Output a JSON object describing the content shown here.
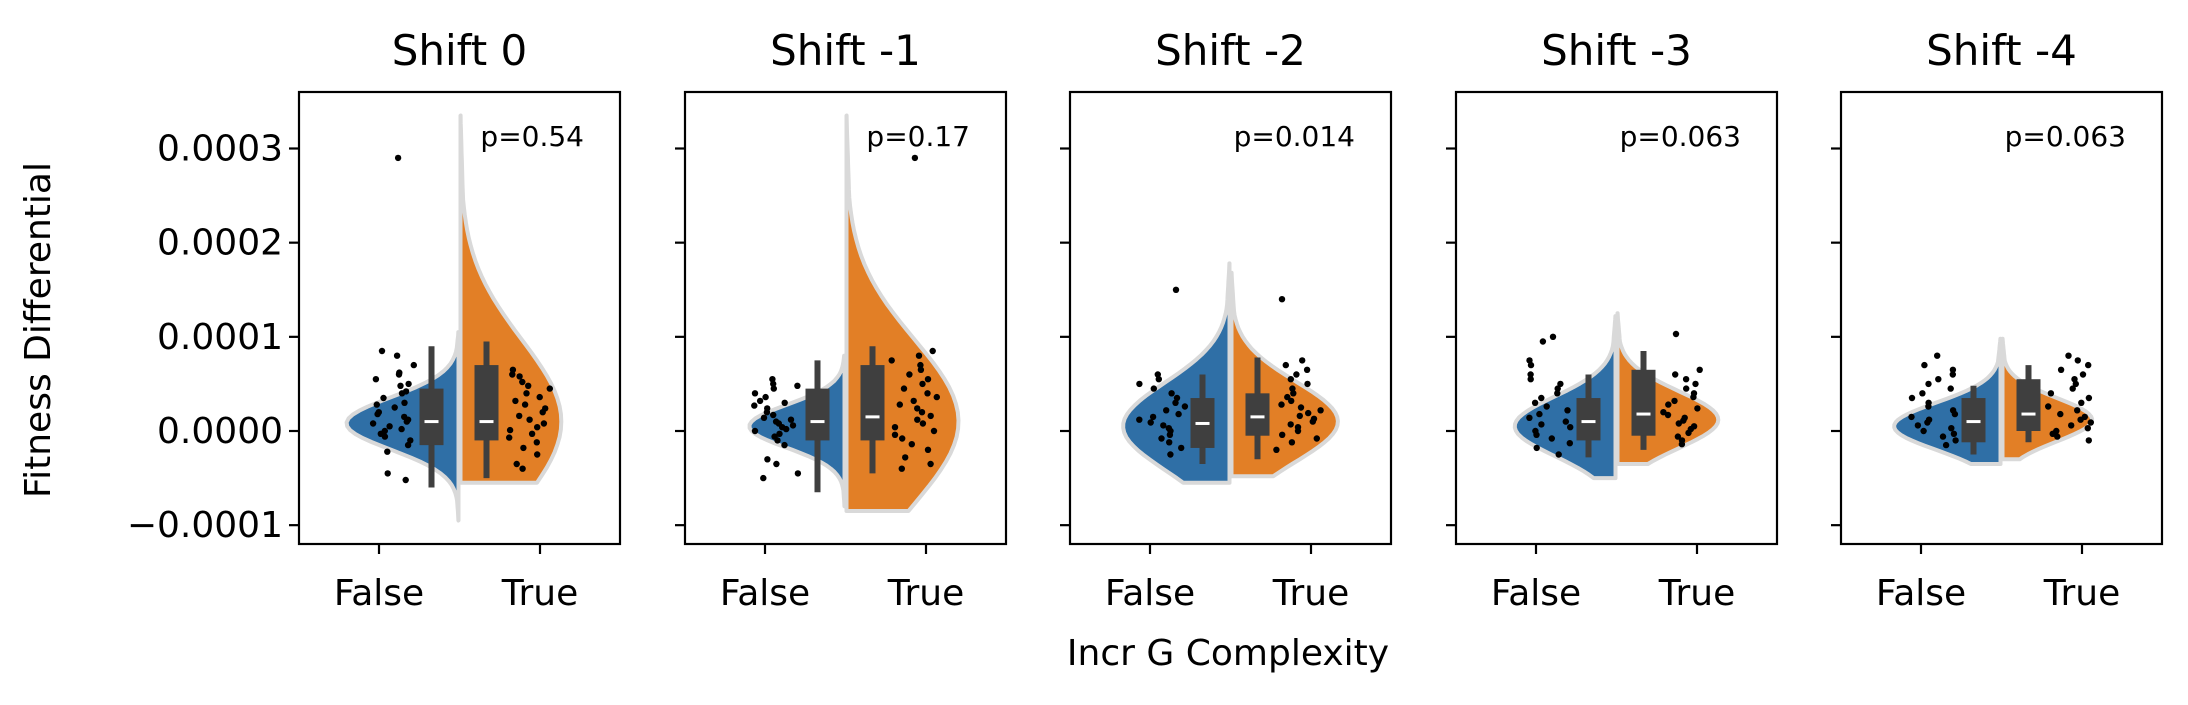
{
  "chart_data": {
    "type": "violin",
    "xlabel": "Incr G Complexity",
    "ylabel": "Fitness Differential",
    "ylim": [
      -0.00012,
      0.00036
    ],
    "yticks": [
      {
        "value": 0.0003,
        "label": "0.0003"
      },
      {
        "value": 0.0002,
        "label": "0.0002"
      },
      {
        "value": 0.0001,
        "label": "0.0001"
      },
      {
        "value": 0.0,
        "label": "0.0000"
      },
      {
        "value": -0.0001,
        "label": "−0.0001"
      }
    ],
    "categories": [
      "False",
      "True"
    ],
    "colors": {
      "False": "#2f6fa6",
      "True": "#e27f26",
      "outline": "#d9d9d9",
      "box": "#3f3f3f",
      "median": "#ffffff"
    },
    "panels": [
      {
        "title": "Shift 0",
        "p_label": "p=0.54",
        "groups": [
          {
            "category": "False",
            "min": -9.5e-05,
            "max": 0.000105,
            "q1": -1.5e-05,
            "median": 1e-05,
            "q3": 4.5e-05,
            "wlo": -6e-05,
            "whi": 9e-05,
            "peak": 8e-06,
            "width": 1.0,
            "tail": 0.0
          },
          {
            "category": "True",
            "min": -5.5e-05,
            "max": 0.000335,
            "q1": -1e-05,
            "median": 1e-05,
            "q3": 7e-05,
            "wlo": -5e-05,
            "whi": 9.5e-05,
            "peak": 1e-05,
            "width": 0.9,
            "tail": 0.0
          }
        ],
        "points": {
          "False": [
            0.00029,
            8.5e-05,
            8e-05,
            7e-05,
            6.2e-05,
            6e-05,
            5.5e-05,
            5e-05,
            4.8e-05,
            4.2e-05,
            4e-05,
            3.5e-05,
            3e-05,
            2.8e-05,
            2.5e-05,
            2e-05,
            1.8e-05,
            1.5e-05,
            1.2e-05,
            1e-05,
            8e-06,
            5e-06,
            2e-06,
            0.0,
            -3e-06,
            -6e-06,
            -1e-05,
            -1.5e-05,
            -2.2e-05,
            -4.5e-05,
            -5.2e-05
          ],
          "True": [
            6.5e-05,
            6e-05,
            5.8e-05,
            5.2e-05,
            4.8e-05,
            4.5e-05,
            4e-05,
            3.6e-05,
            3.2e-05,
            2.8e-05,
            2.4e-05,
            2e-05,
            1.6e-05,
            1.2e-05,
            8e-06,
            4e-06,
            1e-06,
            -3e-06,
            -7e-06,
            -1.2e-05,
            -1.8e-05,
            -2.5e-05,
            -3.5e-05,
            -4e-05
          ]
        }
      },
      {
        "title": "Shift -1",
        "p_label": "p=0.17",
        "groups": [
          {
            "category": "False",
            "min": -8e-05,
            "max": 8e-05,
            "q1": -1e-05,
            "median": 1e-05,
            "q3": 4.5e-05,
            "wlo": -6.5e-05,
            "whi": 7.5e-05,
            "peak": 5e-06,
            "width": 0.85,
            "tail": 0.0
          },
          {
            "category": "True",
            "min": -8.5e-05,
            "max": 0.000335,
            "q1": -1e-05,
            "median": 1.5e-05,
            "q3": 7e-05,
            "wlo": -4.5e-05,
            "whi": 9e-05,
            "peak": 1e-05,
            "width": 1.0,
            "tail": 0.0
          }
        ],
        "points": {
          "False": [
            5.5e-05,
            5e-05,
            4.8e-05,
            4.5e-05,
            4e-05,
            3.6e-05,
            3.2e-05,
            3e-05,
            2.7e-05,
            2.4e-05,
            2e-05,
            1.7e-05,
            1.4e-05,
            1.2e-05,
            1e-05,
            8e-06,
            6e-06,
            4e-06,
            2e-06,
            0.0,
            -3e-06,
            -6e-06,
            -1e-05,
            -1.5e-05,
            -3e-05,
            -3.5e-05,
            -4.5e-05,
            -5e-05
          ],
          "True": [
            0.00029,
            8.5e-05,
            8e-05,
            7.5e-05,
            7e-05,
            6.5e-05,
            6e-05,
            5.5e-05,
            5e-05,
            4.5e-05,
            4e-05,
            3.6e-05,
            3.2e-05,
            2.8e-05,
            2.4e-05,
            2e-05,
            1.6e-05,
            1.2e-05,
            8e-06,
            4e-06,
            0.0,
            -4e-06,
            -8e-06,
            -1.4e-05,
            -2e-05,
            -2.8e-05,
            -3.5e-05,
            -4e-05
          ]
        }
      },
      {
        "title": "Shift -2",
        "p_label": "p=0.014",
        "groups": [
          {
            "category": "False",
            "min": -5.5e-05,
            "max": 0.000178,
            "q1": -1.8e-05,
            "median": 8e-06,
            "q3": 3.5e-05,
            "wlo": -3.5e-05,
            "whi": 6e-05,
            "peak": 5e-06,
            "width": 0.95,
            "tail": 0.0
          },
          {
            "category": "True",
            "min": -4.8e-05,
            "max": 0.000168,
            "q1": -5e-06,
            "median": 1.5e-05,
            "q3": 4e-05,
            "wlo": -3e-05,
            "whi": 7.8e-05,
            "peak": 1e-05,
            "width": 0.95,
            "tail": 0.0
          }
        ],
        "points": {
          "False": [
            0.00015,
            6e-05,
            5.5e-05,
            5e-05,
            4.5e-05,
            4e-05,
            3.5e-05,
            3e-05,
            2.6e-05,
            2.2e-05,
            1.8e-05,
            1.5e-05,
            1.2e-05,
            9e-06,
            6e-06,
            3e-06,
            0.0,
            -4e-06,
            -8e-06,
            -1.2e-05,
            -1.8e-05,
            -2.5e-05
          ],
          "True": [
            0.00014,
            7.5e-05,
            7e-05,
            6.5e-05,
            6e-05,
            5.5e-05,
            5e-05,
            4.5e-05,
            4e-05,
            3.6e-05,
            3.2e-05,
            2.8e-05,
            2.5e-05,
            2.2e-05,
            1.9e-05,
            1.6e-05,
            1.3e-05,
            1e-05,
            7e-06,
            4e-06,
            0.0,
            -4e-06,
            -8e-06,
            -1.2e-05,
            -2e-05
          ]
        }
      },
      {
        "title": "Shift -3",
        "p_label": "p=0.063",
        "groups": [
          {
            "category": "False",
            "min": -5e-05,
            "max": 0.000122,
            "q1": -1e-05,
            "median": 1e-05,
            "q3": 3.5e-05,
            "wlo": -2.8e-05,
            "whi": 6e-05,
            "peak": 5e-06,
            "width": 0.9,
            "tail": 0.0
          },
          {
            "category": "True",
            "min": -3.5e-05,
            "max": 0.000125,
            "q1": -5e-06,
            "median": 1.8e-05,
            "q3": 6.5e-05,
            "wlo": -2e-05,
            "whi": 8.5e-05,
            "peak": 1.2e-05,
            "width": 0.9,
            "tail": 0.0
          }
        ],
        "points": {
          "False": [
            0.0001,
            9.5e-05,
            7.5e-05,
            7e-05,
            6e-05,
            5.5e-05,
            5e-05,
            4.5e-05,
            4e-05,
            3.5e-05,
            3e-05,
            2.6e-05,
            2.2e-05,
            1.8e-05,
            1.4e-05,
            1e-05,
            7e-06,
            4e-06,
            0.0,
            -4e-06,
            -8e-06,
            -1.3e-05,
            -1.8e-05,
            -2.5e-05
          ],
          "True": [
            0.000103,
            6.5e-05,
            6e-05,
            5.5e-05,
            5e-05,
            4.5e-05,
            4e-05,
            3.6e-05,
            3.2e-05,
            2.8e-05,
            2.4e-05,
            2e-05,
            1.7e-05,
            1.4e-05,
            1.1e-05,
            8e-06,
            5e-06,
            2e-06,
            -2e-06,
            -6e-06,
            -1e-05,
            -1.4e-05
          ]
        }
      },
      {
        "title": "Shift -4",
        "p_label": "p=0.063",
        "groups": [
          {
            "category": "False",
            "min": -3.5e-05,
            "max": 9.8e-05,
            "q1": -1.2e-05,
            "median": 1e-05,
            "q3": 3.5e-05,
            "wlo": -2.5e-05,
            "whi": 4.8e-05,
            "peak": 5e-06,
            "width": 0.95,
            "tail": 0.0
          },
          {
            "category": "True",
            "min": -3e-05,
            "max": 9.8e-05,
            "q1": 0.0,
            "median": 1.8e-05,
            "q3": 5.5e-05,
            "wlo": -1.2e-05,
            "whi": 7e-05,
            "peak": 1.2e-05,
            "width": 0.8,
            "tail": 0.0
          }
        ],
        "points": {
          "False": [
            8e-05,
            7e-05,
            6.5e-05,
            6e-05,
            5.5e-05,
            5e-05,
            4.5e-05,
            4e-05,
            3.5e-05,
            3e-05,
            2.6e-05,
            2.2e-05,
            1.8e-05,
            1.5e-05,
            1.2e-05,
            9e-06,
            6e-06,
            3e-06,
            0.0,
            -3e-06,
            -6e-06,
            -1e-05,
            -1.5e-05
          ],
          "True": [
            8e-05,
            7.5e-05,
            7e-05,
            6.5e-05,
            6e-05,
            5.5e-05,
            5e-05,
            4.5e-05,
            4e-05,
            3.5e-05,
            3e-05,
            2.6e-05,
            2.2e-05,
            1.8e-05,
            1.5e-05,
            1.2e-05,
            9e-06,
            6e-06,
            3e-06,
            0.0,
            -3e-06,
            -6e-06,
            -1e-05
          ]
        }
      }
    ]
  }
}
